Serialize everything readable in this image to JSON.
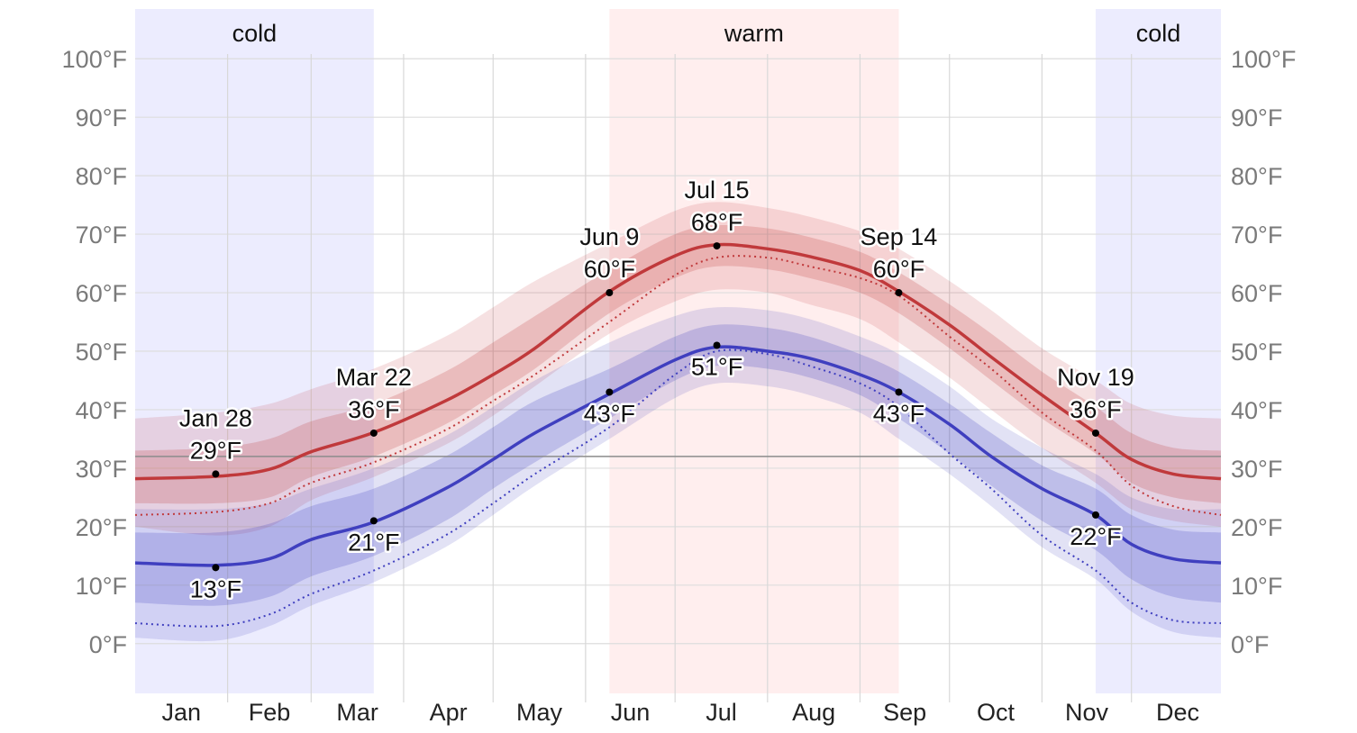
{
  "chart_data": {
    "type": "line",
    "title": "",
    "xlabel": "",
    "ylabel": "",
    "ylim": [
      -8.5,
      108.5
    ],
    "y_ticks": [
      0,
      10,
      20,
      30,
      40,
      50,
      60,
      70,
      80,
      90,
      100
    ],
    "y_unit": "°F",
    "y_axes": [
      "left",
      "right"
    ],
    "grid": true,
    "freezing_line": 32,
    "months": [
      "Jan",
      "Feb",
      "Mar",
      "Apr",
      "May",
      "Jun",
      "Jul",
      "Aug",
      "Sep",
      "Oct",
      "Nov",
      "Dec"
    ],
    "seasons": [
      {
        "label": "cold",
        "start": "Jan 1",
        "end": "Mar 22",
        "color": "#ececfe"
      },
      {
        "label": "warm",
        "start": "Jun 9",
        "end": "Sep 14",
        "color": "#ffeeee"
      },
      {
        "label": "cold",
        "start": "Nov 19",
        "end": "Dec 31",
        "color": "#ececfe"
      }
    ],
    "x_dates": [
      "Jan 1",
      "Jan 28",
      "Feb 15",
      "Mar 1",
      "Mar 22",
      "Apr 15",
      "May 1",
      "May 15",
      "Jun 9",
      "Jul 1",
      "Jul 15",
      "Aug 1",
      "Aug 15",
      "Sep 1",
      "Sep 14",
      "Oct 1",
      "Oct 15",
      "Nov 1",
      "Nov 19",
      "Dec 1",
      "Dec 15",
      "Dec 31"
    ],
    "series": [
      {
        "name": "",
        "color": "#c0393b",
        "values": [
          28.2,
          28.6,
          29.8,
          32.8,
          36.1,
          41.5,
          46.0,
          50.5,
          60.2,
          66.3,
          68.2,
          67.5,
          66.2,
          63.8,
          60.2,
          54.5,
          49.0,
          42.5,
          36.0,
          31.5,
          29.0,
          28.2
        ]
      },
      {
        "name": "",
        "color": "#3f3fbf",
        "values": [
          13.8,
          13.4,
          14.5,
          17.8,
          20.8,
          26.5,
          31.5,
          36.0,
          42.7,
          48.5,
          50.7,
          50.0,
          48.8,
          46.0,
          43.0,
          37.5,
          32.0,
          26.5,
          22.0,
          17.0,
          14.5,
          13.8
        ]
      }
    ],
    "bands": [
      {
        "color": "#c0393b",
        "outer_low": [
          20.0,
          18.5,
          20.0,
          24.5,
          28.5,
          34.0,
          39.0,
          44.0,
          53.0,
          58.5,
          60.5,
          60.0,
          58.0,
          55.5,
          51.5,
          45.5,
          40.0,
          33.5,
          27.5,
          23.0,
          21.0,
          20.0
        ],
        "outer_high": [
          38.5,
          39.5,
          41.0,
          43.5,
          47.0,
          52.5,
          57.5,
          62.0,
          68.5,
          74.0,
          75.5,
          74.5,
          73.0,
          70.5,
          67.5,
          62.0,
          57.0,
          50.5,
          45.0,
          41.0,
          39.0,
          38.5
        ],
        "inner_low": [
          24.0,
          24.0,
          25.0,
          28.5,
          32.0,
          37.5,
          42.5,
          47.0,
          56.5,
          62.5,
          64.5,
          64.0,
          62.5,
          60.0,
          56.5,
          50.5,
          45.0,
          38.5,
          32.5,
          27.5,
          25.0,
          24.0
        ],
        "inner_high": [
          33.0,
          33.5,
          35.0,
          38.0,
          41.0,
          46.5,
          51.5,
          56.0,
          64.0,
          70.0,
          71.5,
          71.0,
          69.5,
          67.0,
          63.5,
          58.0,
          53.0,
          46.5,
          40.5,
          36.0,
          33.5,
          33.0
        ]
      },
      {
        "color": "#3f3fbf",
        "outer_low": [
          1.0,
          0.5,
          3.0,
          6.5,
          10.5,
          16.5,
          22.0,
          27.0,
          35.0,
          42.0,
          44.5,
          44.0,
          42.5,
          39.5,
          35.0,
          29.0,
          23.5,
          16.5,
          11.0,
          5.5,
          2.0,
          1.0
        ],
        "outer_high": [
          23.0,
          23.0,
          24.0,
          26.5,
          30.0,
          35.5,
          40.5,
          45.0,
          51.5,
          56.0,
          57.5,
          57.0,
          55.5,
          52.5,
          49.5,
          44.0,
          38.5,
          33.5,
          29.0,
          25.0,
          23.0,
          23.0
        ],
        "inner_low": [
          7.0,
          6.5,
          8.0,
          11.5,
          15.0,
          21.0,
          26.5,
          31.0,
          38.5,
          45.0,
          47.5,
          47.0,
          45.5,
          42.5,
          38.5,
          32.5,
          27.0,
          21.0,
          16.0,
          11.0,
          8.0,
          7.0
        ],
        "inner_high": [
          19.0,
          19.0,
          20.5,
          23.5,
          26.5,
          32.0,
          37.0,
          41.5,
          47.0,
          52.5,
          54.5,
          54.0,
          52.5,
          49.5,
          46.5,
          41.0,
          36.0,
          30.5,
          26.5,
          22.0,
          19.5,
          19.0
        ]
      }
    ],
    "dotted_lines": [
      {
        "color": "#c0393b",
        "values": [
          22.0,
          22.5,
          24.0,
          27.5,
          31.0,
          36.5,
          41.5,
          46.0,
          55.0,
          63.0,
          66.0,
          66.0,
          64.5,
          62.5,
          59.5,
          52.5,
          47.0,
          39.5,
          33.0,
          27.0,
          23.5,
          22.0
        ]
      },
      {
        "color": "#3f3fbf",
        "values": [
          3.5,
          3.0,
          5.0,
          8.5,
          12.5,
          18.5,
          24.0,
          29.0,
          37.0,
          46.0,
          50.0,
          49.5,
          47.5,
          44.5,
          40.5,
          32.5,
          26.5,
          18.5,
          12.5,
          7.0,
          4.0,
          3.5
        ]
      }
    ],
    "annotations": [
      {
        "date": "Jan 28",
        "value": 29,
        "date_label": "Jan 28",
        "value_label": "29°F",
        "position": "above"
      },
      {
        "date": "Jan 28",
        "value": 13,
        "date_label": "",
        "value_label": "13°F",
        "position": "below"
      },
      {
        "date": "Mar 22",
        "value": 36,
        "date_label": "Mar 22",
        "value_label": "36°F",
        "position": "above"
      },
      {
        "date": "Mar 22",
        "value": 21,
        "date_label": "",
        "value_label": "21°F",
        "position": "below"
      },
      {
        "date": "Jun 9",
        "value": 60,
        "date_label": "Jun 9",
        "value_label": "60°F",
        "position": "above"
      },
      {
        "date": "Jun 9",
        "value": 43,
        "date_label": "",
        "value_label": "43°F",
        "position": "below"
      },
      {
        "date": "Jul 15",
        "value": 68,
        "date_label": "Jul 15",
        "value_label": "68°F",
        "position": "above"
      },
      {
        "date": "Jul 15",
        "value": 51,
        "date_label": "",
        "value_label": "51°F",
        "position": "below"
      },
      {
        "date": "Sep 14",
        "value": 60,
        "date_label": "Sep 14",
        "value_label": "60°F",
        "position": "above"
      },
      {
        "date": "Sep 14",
        "value": 43,
        "date_label": "",
        "value_label": "43°F",
        "position": "below"
      },
      {
        "date": "Nov 19",
        "value": 36,
        "date_label": "Nov 19",
        "value_label": "36°F",
        "position": "above"
      },
      {
        "date": "Nov 19",
        "value": 22,
        "date_label": "",
        "value_label": "22°F",
        "position": "below"
      }
    ]
  }
}
